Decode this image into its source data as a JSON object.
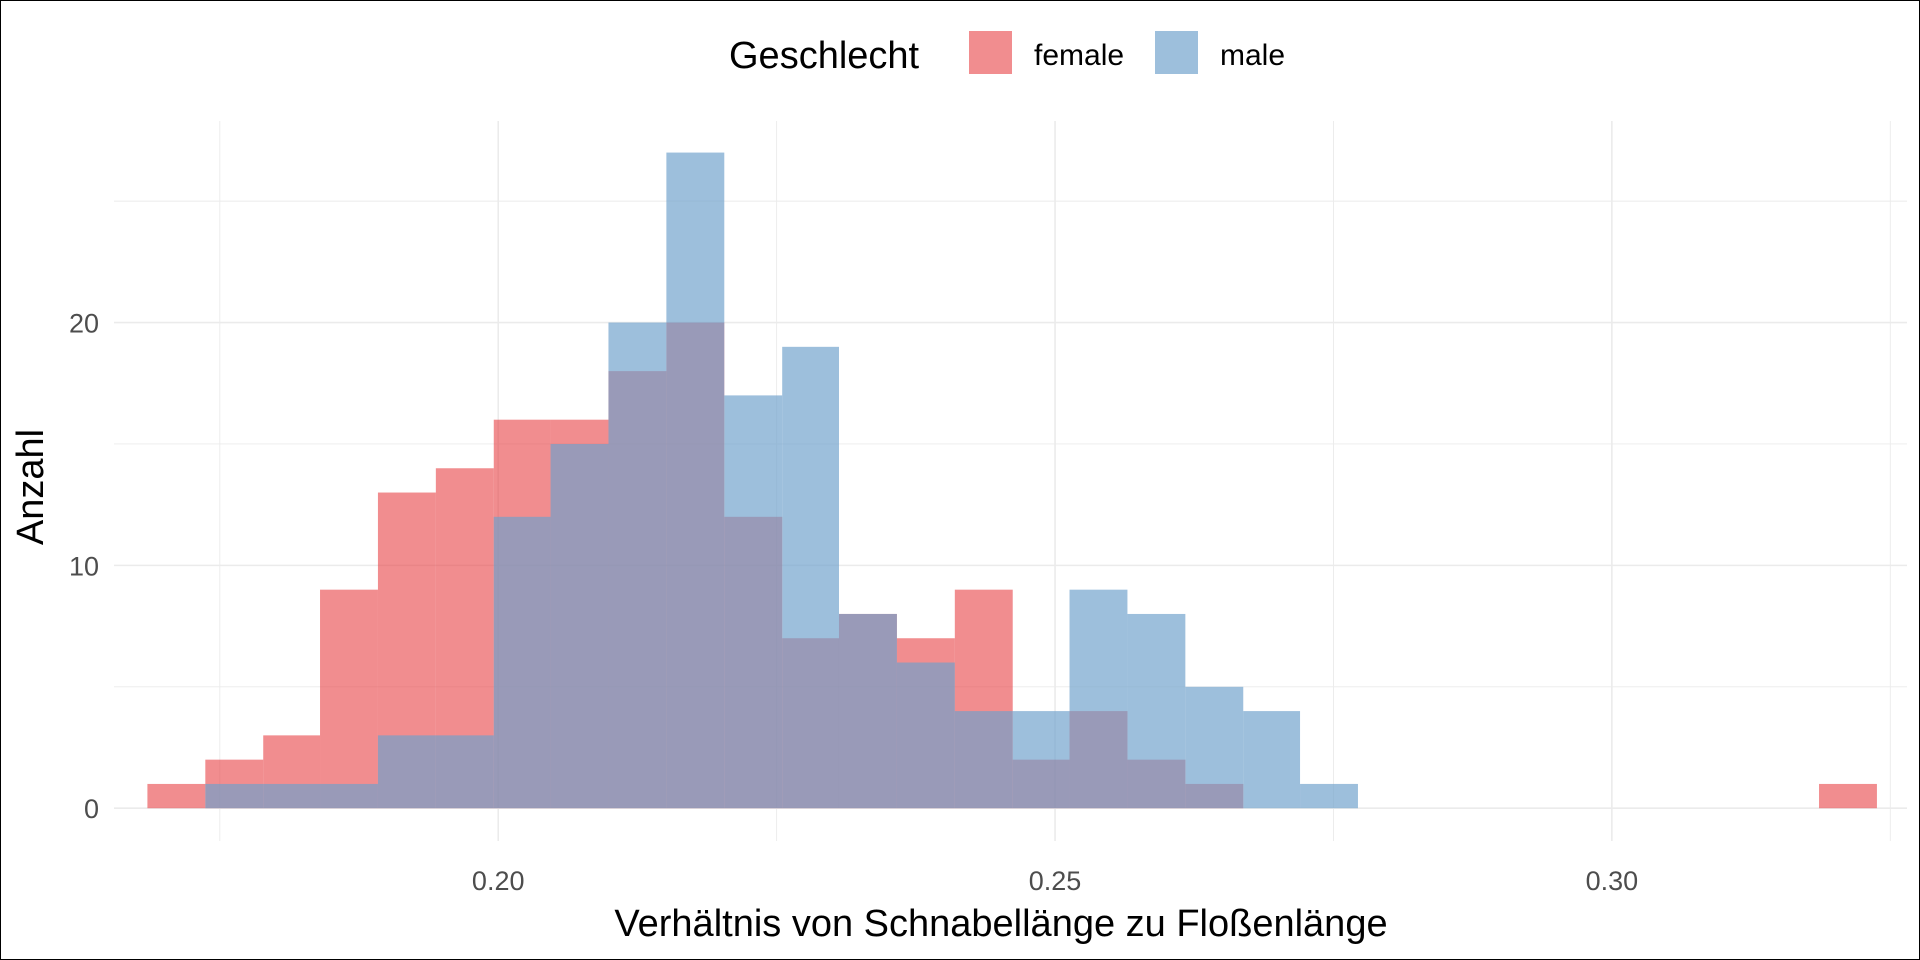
{
  "chart_data": {
    "type": "histogram",
    "xlabel": "Verhältnis von Schnabellänge zu Floßenlänge",
    "ylabel": "Anzahl",
    "xlim": [
      0.1655,
      0.3265
    ],
    "ylim": [
      -1.35,
      28.3
    ],
    "x_ticks": [
      0.2,
      0.25,
      0.3
    ],
    "x_tick_labels": [
      "0.20",
      "0.25",
      "0.30"
    ],
    "y_ticks": [
      0,
      10,
      20
    ],
    "y_tick_labels": [
      "0",
      "10",
      "20"
    ],
    "grid": true,
    "legend": {
      "title": "Geschlecht",
      "position": "top",
      "entries": [
        "female",
        "male"
      ]
    },
    "bin_edges": [
      0.1685,
      0.1737,
      0.1789,
      0.184,
      0.1892,
      0.1944,
      0.1996,
      0.2047,
      0.2099,
      0.2151,
      0.2203,
      0.2255,
      0.2306,
      0.2358,
      0.241,
      0.2462,
      0.2513,
      0.2565,
      0.2617,
      0.2669,
      0.272,
      0.2772,
      0.2824,
      0.2876,
      0.2927,
      0.2979,
      0.3031,
      0.3083,
      0.3134,
      0.3186,
      0.3238
    ],
    "series": [
      {
        "name": "female",
        "color": "#e8474a",
        "opacity": 0.62,
        "values": [
          1,
          2,
          3,
          9,
          13,
          14,
          16,
          16,
          18,
          20,
          12,
          7,
          8,
          7,
          9,
          2,
          4,
          2,
          1,
          0,
          0,
          0,
          0,
          0,
          0,
          0,
          0,
          0,
          0,
          1
        ]
      },
      {
        "name": "male",
        "color": "#6fa0cb",
        "opacity": 0.68,
        "values": [
          0,
          1,
          1,
          1,
          3,
          3,
          12,
          15,
          20,
          27,
          17,
          19,
          8,
          6,
          4,
          4,
          9,
          8,
          5,
          4,
          1,
          0,
          0,
          0,
          0,
          0,
          0,
          0,
          0,
          0
        ]
      }
    ]
  }
}
